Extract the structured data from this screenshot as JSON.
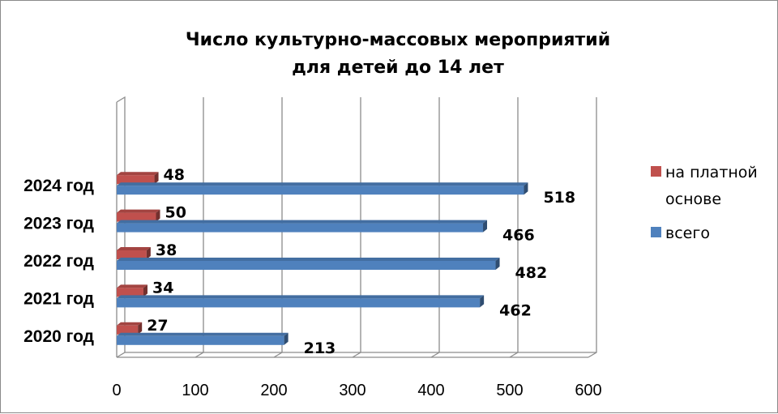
{
  "chart_data": {
    "type": "bar",
    "orientation": "horizontal",
    "title_lines": [
      "Число культурно-массовых мероприятий",
      "для детей до 14 лет"
    ],
    "categories": [
      "2020 год",
      "2021 год",
      "2022 год",
      "2023 год",
      "2024 год"
    ],
    "series": [
      {
        "name": "на платной основе",
        "values": [
          27,
          34,
          38,
          50,
          48
        ],
        "color": "#c0504d"
      },
      {
        "name": "всего",
        "values": [
          213,
          462,
          482,
          466,
          518
        ],
        "color": "#4f81bd"
      }
    ],
    "xticks": [
      "0",
      "100",
      "200",
      "300",
      "400",
      "500",
      "600"
    ],
    "xlim": [
      0,
      600
    ],
    "grid": true,
    "legend_position": "right",
    "legend_lines": [
      [
        "на платной",
        "основе"
      ],
      [
        "всего"
      ]
    ]
  }
}
